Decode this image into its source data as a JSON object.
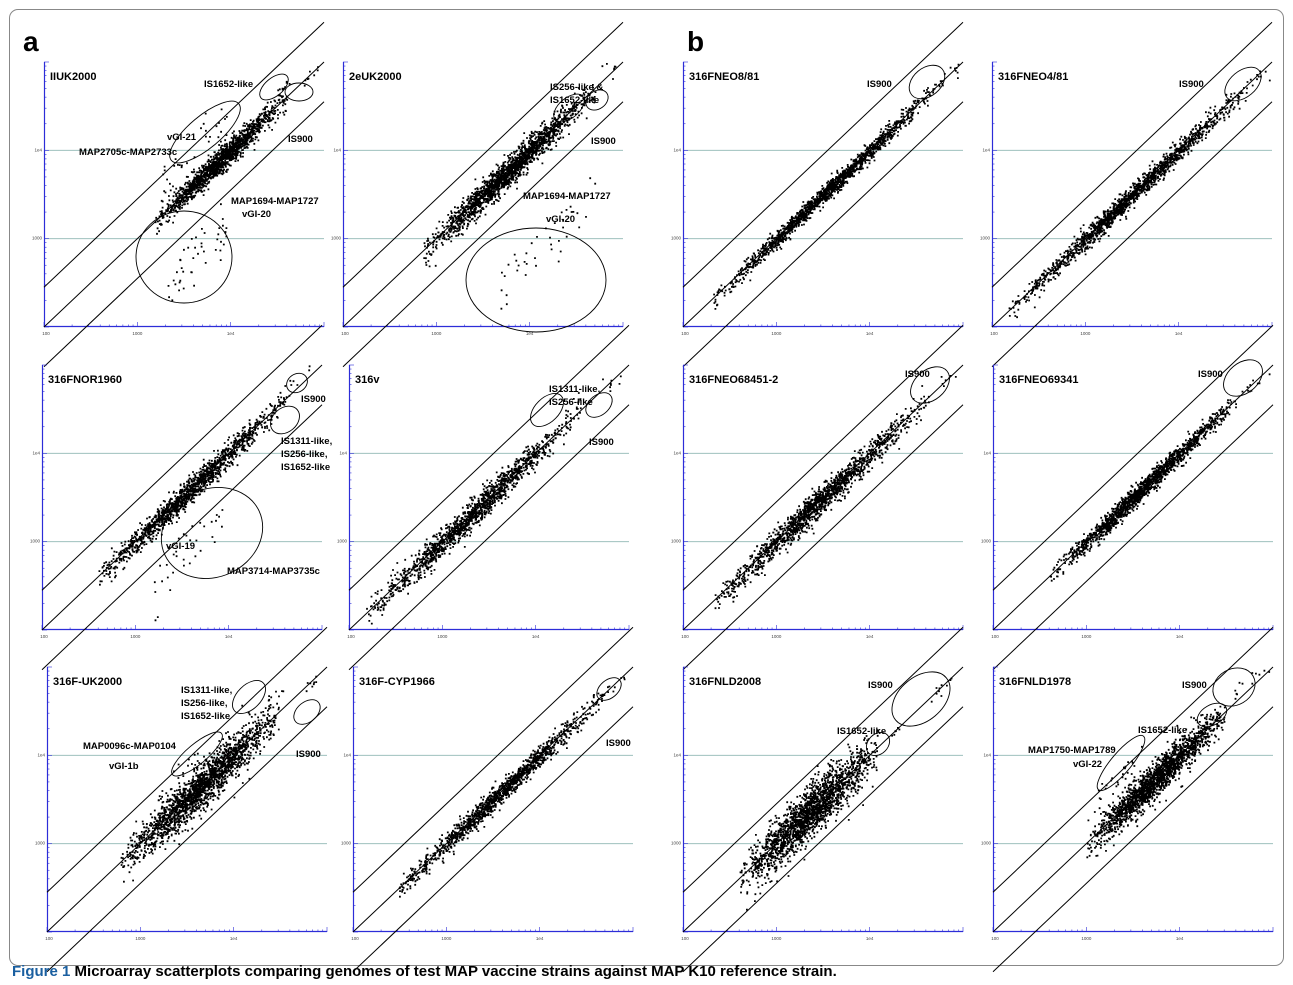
{
  "figure": {
    "panel_labels": [
      "a",
      "b"
    ],
    "caption_label": "Figure 1",
    "caption_text": " Microarray scatterplots comparing genomes of test MAP vaccine strains against MAP K10 reference strain."
  },
  "chart_data": [
    {
      "type": "scatter",
      "title": "IIUK2000",
      "scale": "log",
      "xlim": [
        100,
        100000
      ],
      "ylim": [
        100,
        100000
      ],
      "ticks": [
        "100",
        "1000",
        "1e4",
        "1e5"
      ],
      "annotations": [
        "IS1652-like",
        "vGI-21",
        "MAP2705c-MAP2733c",
        "IS900",
        "MAP1694-MAP1727",
        "vGI-20"
      ],
      "clusters": [
        {
          "name": "main",
          "x": [
            1500,
            40000
          ],
          "count": 1400,
          "spread": 0.07
        },
        {
          "name": "vGI-21",
          "x": [
            1800,
            9000
          ],
          "offset": 0.35,
          "count": 40,
          "spread": 0.12
        },
        {
          "name": "vGI-20",
          "x": [
            2000,
            9000
          ],
          "offset": -0.8,
          "count": 45,
          "spread": 0.18
        },
        {
          "name": "IS1652-like",
          "x": [
            30000,
            45000
          ],
          "offset": 0.2,
          "count": 6,
          "spread": 0.05
        },
        {
          "name": "IS900",
          "x": [
            60000,
            90000
          ],
          "offset": 0.0,
          "count": 8,
          "spread": 0.05
        }
      ]
    },
    {
      "type": "scatter",
      "title": "2eUK2000",
      "scale": "log",
      "xlim": [
        100,
        100000
      ],
      "ylim": [
        100,
        100000
      ],
      "ticks": [
        "100",
        "1000",
        "1e4",
        "1e5"
      ],
      "annotations": [
        "IS256-like &",
        "IS1652-like",
        "IS900",
        "MAP1694-MAP1727",
        "vGI-20"
      ],
      "clusters": [
        {
          "name": "main",
          "x": [
            700,
            50000
          ],
          "count": 1800,
          "spread": 0.08
        },
        {
          "name": "vGI-20",
          "x": [
            4000,
            50000
          ],
          "offset": -1.2,
          "count": 40,
          "spread": 0.2
        },
        {
          "name": "IS256-like",
          "x": [
            50000,
            70000
          ],
          "offset": 0.2,
          "count": 5,
          "spread": 0.05
        },
        {
          "name": "IS900",
          "x": [
            70000,
            90000
          ],
          "offset": 0.0,
          "count": 5,
          "spread": 0.05
        }
      ]
    },
    {
      "type": "scatter",
      "title": "316FNEO8/81",
      "scale": "log",
      "xlim": [
        100,
        100000
      ],
      "ylim": [
        100,
        100000
      ],
      "ticks": [
        "100",
        "1000",
        "1e4",
        "1e5"
      ],
      "annotations": [
        "IS900"
      ],
      "clusters": [
        {
          "name": "main",
          "x": [
            200,
            60000
          ],
          "count": 1500,
          "spread": 0.05
        },
        {
          "name": "IS900",
          "x": [
            60000,
            95000
          ],
          "offset": 0.0,
          "count": 8,
          "spread": 0.05
        }
      ]
    },
    {
      "type": "scatter",
      "title": "316FNEO4/81",
      "scale": "log",
      "xlim": [
        100,
        100000
      ],
      "ylim": [
        100,
        100000
      ],
      "ticks": [
        "100",
        "1000",
        "1e4",
        "1e5"
      ],
      "annotations": [
        "IS900"
      ],
      "clusters": [
        {
          "name": "main",
          "x": [
            150,
            60000
          ],
          "count": 1500,
          "spread": 0.06
        },
        {
          "name": "IS900",
          "x": [
            60000,
            95000
          ],
          "offset": 0.0,
          "count": 8,
          "spread": 0.05
        }
      ]
    },
    {
      "type": "scatter",
      "title": "316FNOR1960",
      "scale": "log",
      "xlim": [
        100,
        100000
      ],
      "ylim": [
        100,
        100000
      ],
      "ticks": [
        "100",
        "1000",
        "1e4",
        "1e5"
      ],
      "annotations": [
        "IS900",
        "IS1311-like,",
        "IS256-like,",
        "IS1652-like",
        "vGI-19",
        "MAP3714-MAP3735c"
      ],
      "clusters": [
        {
          "name": "main",
          "x": [
            400,
            40000
          ],
          "count": 1400,
          "spread": 0.07
        },
        {
          "name": "vGI-19",
          "x": [
            1500,
            9000
          ],
          "offset": -0.7,
          "count": 35,
          "spread": 0.18
        },
        {
          "name": "IS1311-like",
          "x": [
            35000,
            55000
          ],
          "offset": 0.1,
          "count": 8,
          "spread": 0.05
        },
        {
          "name": "IS900",
          "x": [
            60000,
            80000
          ],
          "offset": 0.15,
          "count": 6,
          "spread": 0.05
        }
      ]
    },
    {
      "type": "scatter",
      "title": "316v",
      "scale": "log",
      "xlim": [
        100,
        100000
      ],
      "ylim": [
        100,
        100000
      ],
      "ticks": [
        "100",
        "1000",
        "1e4",
        "1e5"
      ],
      "annotations": [
        "IS1311-like,",
        "IS256-like",
        "IS900"
      ],
      "clusters": [
        {
          "name": "main",
          "x": [
            150,
            30000
          ],
          "count": 1400,
          "spread": 0.08
        },
        {
          "name": "IS1311-like",
          "x": [
            25000,
            40000
          ],
          "offset": 0.15,
          "count": 6,
          "spread": 0.05
        },
        {
          "name": "IS900",
          "x": [
            50000,
            80000
          ],
          "offset": 0.0,
          "count": 8,
          "spread": 0.05
        }
      ]
    },
    {
      "type": "scatter",
      "title": "316FNEO68451-2",
      "scale": "log",
      "xlim": [
        100,
        100000
      ],
      "ylim": [
        100,
        100000
      ],
      "ticks": [
        "100",
        "1000",
        "1e4",
        "1e5"
      ],
      "annotations": [
        "IS900"
      ],
      "clusters": [
        {
          "name": "main",
          "x": [
            200,
            40000
          ],
          "count": 1500,
          "spread": 0.08
        },
        {
          "name": "IS900",
          "x": [
            40000,
            90000
          ],
          "offset": 0.0,
          "count": 10,
          "spread": 0.05
        }
      ]
    },
    {
      "type": "scatter",
      "title": "316FNEO69341",
      "scale": "log",
      "xlim": [
        100,
        100000
      ],
      "ylim": [
        100,
        100000
      ],
      "ticks": [
        "100",
        "1000",
        "1e4",
        "1e5"
      ],
      "annotations": [
        "IS900"
      ],
      "clusters": [
        {
          "name": "main",
          "x": [
            400,
            40000
          ],
          "count": 1500,
          "spread": 0.06
        },
        {
          "name": "IS900",
          "x": [
            45000,
            90000
          ],
          "offset": 0.0,
          "count": 10,
          "spread": 0.05
        }
      ]
    },
    {
      "type": "scatter",
      "title": "316F-UK2000",
      "scale": "log",
      "xlim": [
        100,
        100000
      ],
      "ylim": [
        100,
        100000
      ],
      "ticks": [
        "100",
        "1000",
        "1e4",
        "1e5"
      ],
      "annotations": [
        "IS1311-like,",
        "IS256-like,",
        "IS1652-like",
        "MAP0096c-MAP0104",
        "vGI-1b",
        "IS900"
      ],
      "clusters": [
        {
          "name": "main",
          "x": [
            600,
            30000
          ],
          "count": 1900,
          "spread": 0.12
        },
        {
          "name": "vGI-1b",
          "x": [
            1500,
            5000
          ],
          "offset": 0.3,
          "count": 30,
          "spread": 0.1
        },
        {
          "name": "IS1311-like",
          "x": [
            20000,
            35000
          ],
          "offset": 0.2,
          "count": 8,
          "spread": 0.05
        },
        {
          "name": "IS900",
          "x": [
            50000,
            80000
          ],
          "offset": 0.0,
          "count": 8,
          "spread": 0.05
        }
      ]
    },
    {
      "type": "scatter",
      "title": "316F-CYP1966",
      "scale": "log",
      "xlim": [
        100,
        100000
      ],
      "ylim": [
        100,
        100000
      ],
      "ticks": [
        "100",
        "1000",
        "1e4",
        "1e5"
      ],
      "annotations": [
        "IS900"
      ],
      "clusters": [
        {
          "name": "main",
          "x": [
            300,
            50000
          ],
          "count": 1300,
          "spread": 0.06
        },
        {
          "name": "IS900",
          "x": [
            50000,
            85000
          ],
          "offset": 0.0,
          "count": 8,
          "spread": 0.05
        }
      ]
    },
    {
      "type": "scatter",
      "title": "316FNLD2008",
      "scale": "log",
      "xlim": [
        100,
        100000
      ],
      "ylim": [
        100,
        100000
      ],
      "ticks": [
        "100",
        "1000",
        "1e4",
        "1e5"
      ],
      "annotations": [
        "IS900",
        "IS1652-like"
      ],
      "clusters": [
        {
          "name": "main",
          "x": [
            400,
            12000
          ],
          "count": 1900,
          "spread": 0.14
        },
        {
          "name": "IS1652-like",
          "x": [
            15000,
            25000
          ],
          "offset": 0.0,
          "count": 6,
          "spread": 0.05
        },
        {
          "name": "IS900",
          "x": [
            40000,
            80000
          ],
          "offset": 0.0,
          "count": 10,
          "spread": 0.06
        }
      ]
    },
    {
      "type": "scatter",
      "title": "316FNLD1978",
      "scale": "log",
      "xlim": [
        100,
        100000
      ],
      "ylim": [
        100,
        100000
      ],
      "ticks": [
        "100",
        "1000",
        "1e4",
        "1e5"
      ],
      "annotations": [
        "IS900",
        "IS1652-like",
        "MAP1750-MAP1789",
        "vGI-22"
      ],
      "clusters": [
        {
          "name": "main",
          "x": [
            1000,
            30000
          ],
          "count": 1800,
          "spread": 0.1
        },
        {
          "name": "vGI-22",
          "x": [
            1200,
            4000
          ],
          "offset": 0.4,
          "count": 25,
          "spread": 0.08
        },
        {
          "name": "IS1652-like",
          "x": [
            35000,
            50000
          ],
          "offset": 0.1,
          "count": 6,
          "spread": 0.05
        },
        {
          "name": "IS900",
          "x": [
            50000,
            90000
          ],
          "offset": 0.1,
          "count": 10,
          "spread": 0.06
        }
      ]
    }
  ]
}
